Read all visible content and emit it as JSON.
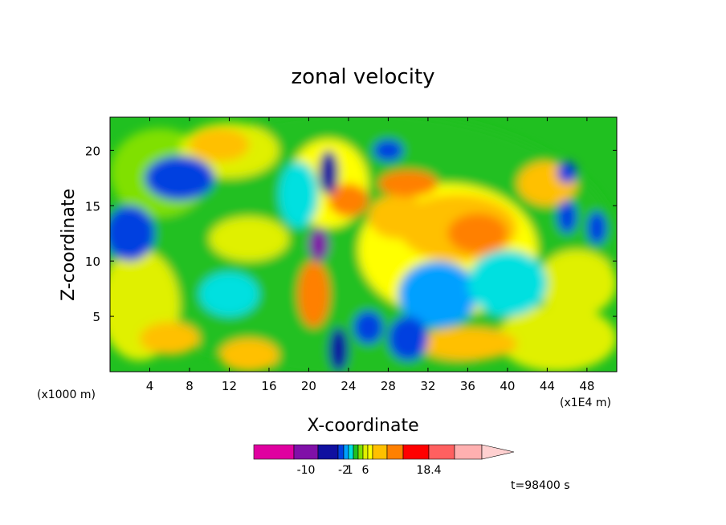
{
  "chart_data": {
    "type": "heatmap",
    "title": "zonal velocity",
    "xlabel": "X-coordinate",
    "ylabel": "Z-coordinate",
    "x_unit_left": "(x1000 m)",
    "x_unit_right": "(x1E4 m)",
    "xlim": [
      0,
      51
    ],
    "ylim": [
      0,
      23
    ],
    "x_ticks": [
      4,
      8,
      12,
      16,
      20,
      24,
      28,
      32,
      36,
      40,
      44,
      48
    ],
    "y_ticks": [
      5,
      10,
      15,
      20
    ],
    "time_label": "t=98400 s",
    "colorbar": {
      "colors": [
        "#e000a0",
        "#8010a8",
        "#1010a0",
        "#0040e0",
        "#00a0ff",
        "#00e0e0",
        "#20c020",
        "#80e000",
        "#e0f000",
        "#ffff00",
        "#ffc000",
        "#ff8000",
        "#ff0000",
        "#ff6060",
        "#ffb0b0",
        "#ffd0d0"
      ],
      "labels": [
        {
          "text": "-10",
          "index": 1.5
        },
        {
          "text": "-2",
          "index": 4
        },
        {
          "text": "1",
          "index": 5.2
        },
        {
          "text": "6",
          "index": 8.5
        },
        {
          "text": "18.4",
          "index": 13
        }
      ]
    },
    "blobs": [
      {
        "x": 25,
        "z": 11.5,
        "rx": 26,
        "rz": 12,
        "level": 6
      },
      {
        "x": 5,
        "z": 18,
        "rx": 5,
        "rz": 4,
        "level": 7
      },
      {
        "x": 3,
        "z": 6,
        "rx": 4,
        "rz": 5,
        "level": 8
      },
      {
        "x": 45,
        "z": 3,
        "rx": 6,
        "rz": 3,
        "level": 8
      },
      {
        "x": 47,
        "z": 8,
        "rx": 4,
        "rz": 3,
        "level": 8
      },
      {
        "x": 12,
        "z": 20,
        "rx": 5,
        "rz": 2.5,
        "level": 8
      },
      {
        "x": 34,
        "z": 11,
        "rx": 9,
        "rz": 6,
        "level": 9
      },
      {
        "x": 22,
        "z": 17,
        "rx": 4,
        "rz": 4,
        "level": 9
      },
      {
        "x": 14,
        "z": 12,
        "rx": 4,
        "rz": 2,
        "level": 8
      },
      {
        "x": 11,
        "z": 20.5,
        "rx": 3,
        "rz": 1.5,
        "level": 10
      },
      {
        "x": 6,
        "z": 3,
        "rx": 3,
        "rz": 1.5,
        "level": 10
      },
      {
        "x": 14,
        "z": 1.5,
        "rx": 3,
        "rz": 1.5,
        "level": 10
      },
      {
        "x": 36,
        "z": 2.5,
        "rx": 5,
        "rz": 1.5,
        "level": 10
      },
      {
        "x": 44,
        "z": 17,
        "rx": 3,
        "rz": 2,
        "level": 10
      },
      {
        "x": 35,
        "z": 13,
        "rx": 6,
        "rz": 3,
        "level": 10
      },
      {
        "x": 29,
        "z": 14,
        "rx": 3,
        "rz": 2,
        "level": 10
      },
      {
        "x": 30,
        "z": 17,
        "rx": 3,
        "rz": 1.2,
        "level": 11
      },
      {
        "x": 37,
        "z": 12.5,
        "rx": 3,
        "rz": 1.8,
        "level": 11
      },
      {
        "x": 20.5,
        "z": 7,
        "rx": 1.6,
        "rz": 3,
        "level": 11
      },
      {
        "x": 24,
        "z": 15.5,
        "rx": 2,
        "rz": 1.5,
        "level": 11
      },
      {
        "x": 7,
        "z": 17.5,
        "rx": 3.5,
        "rz": 2,
        "level": 3
      },
      {
        "x": 2,
        "z": 12.5,
        "rx": 2.5,
        "rz": 2.5,
        "level": 3
      },
      {
        "x": 12,
        "z": 7,
        "rx": 3,
        "rz": 2,
        "level": 5
      },
      {
        "x": 19,
        "z": 16,
        "rx": 2,
        "rz": 3,
        "level": 5
      },
      {
        "x": 33,
        "z": 7,
        "rx": 4,
        "rz": 3,
        "level": 4
      },
      {
        "x": 40,
        "z": 8,
        "rx": 4,
        "rz": 3,
        "level": 5
      },
      {
        "x": 46,
        "z": 14,
        "rx": 1,
        "rz": 1.5,
        "level": 3
      },
      {
        "x": 49,
        "z": 13,
        "rx": 1,
        "rz": 1.5,
        "level": 3
      },
      {
        "x": 46,
        "z": 18,
        "rx": 1,
        "rz": 1,
        "level": 3
      },
      {
        "x": 30,
        "z": 3,
        "rx": 2,
        "rz": 2,
        "level": 3
      },
      {
        "x": 26,
        "z": 4,
        "rx": 1.5,
        "rz": 1.5,
        "level": 3
      },
      {
        "x": 21,
        "z": 11.5,
        "rx": 1,
        "rz": 1.5,
        "level": 1
      },
      {
        "x": 23,
        "z": 2,
        "rx": 1,
        "rz": 2,
        "level": 2
      },
      {
        "x": 22,
        "z": 18,
        "rx": 1,
        "rz": 2,
        "level": 2
      },
      {
        "x": 28,
        "z": 20,
        "rx": 1.5,
        "rz": 1,
        "level": 3
      }
    ]
  }
}
